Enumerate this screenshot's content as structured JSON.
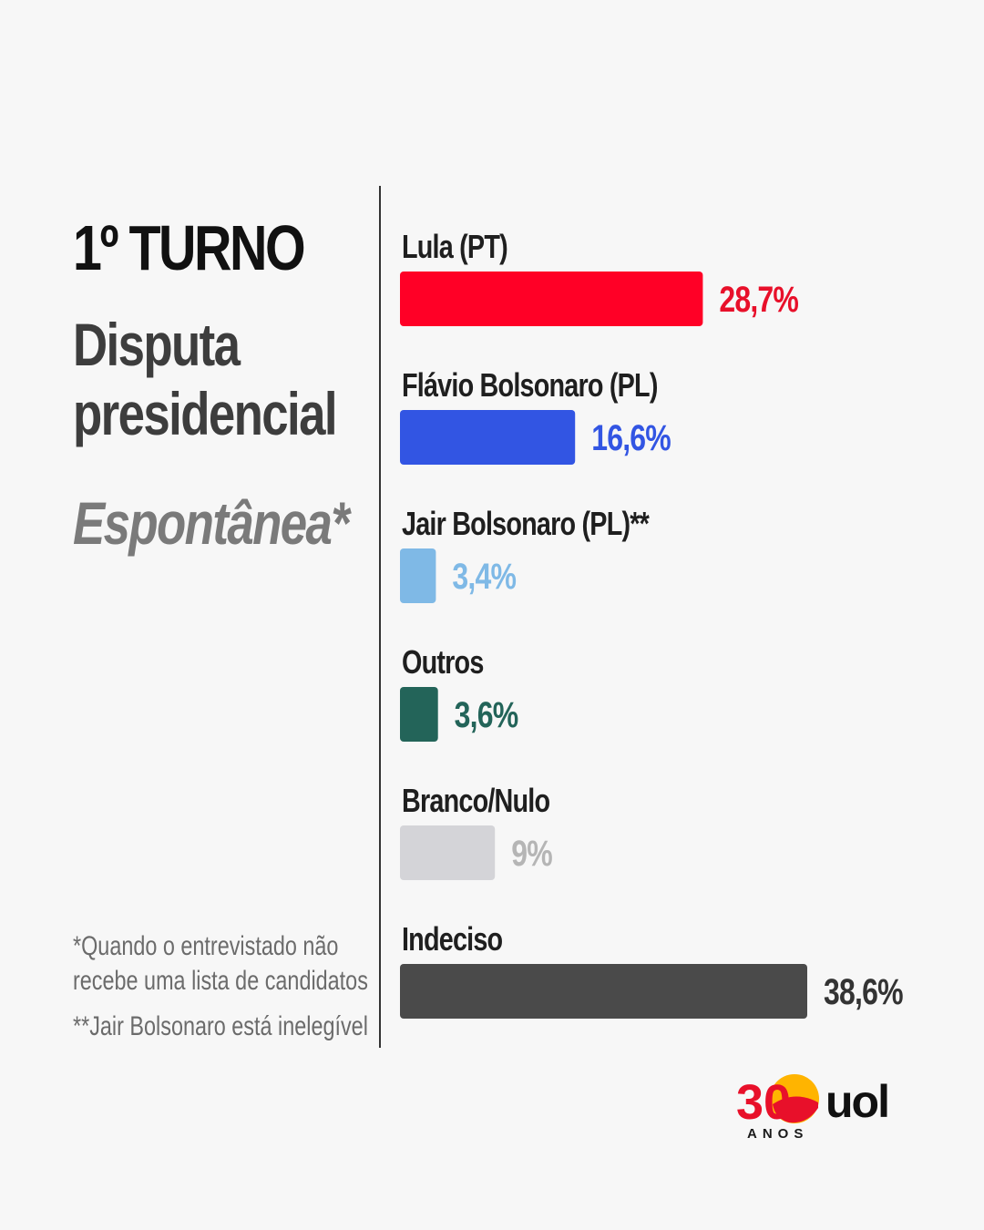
{
  "header": {
    "title": "1º TURNO",
    "subtitle_line1": "Disputa",
    "subtitle_line2": "presidencial",
    "kind": "Espontânea*"
  },
  "notes": {
    "note1_line1": "*Quando o entrevistado não",
    "note1_line2": "recebe uma lista de candidatos",
    "note2": "**Jair Bolsonaro está inelegível"
  },
  "logo": {
    "number": "30",
    "brand": "uol",
    "anos": "ANOS"
  },
  "chart_data": {
    "type": "bar",
    "orientation": "horizontal",
    "categories": [
      "Lula (PT)",
      "Flávio Bolsonaro (PL)",
      "Jair Bolsonaro (PL)**",
      "Outros",
      "Branco/Nulo",
      "Indeciso"
    ],
    "values": [
      28.7,
      16.6,
      3.4,
      3.6,
      9,
      38.6
    ],
    "value_labels": [
      "28,7%",
      "16,6%",
      "3,4%",
      "3,6%",
      "9%",
      "38,6%"
    ],
    "colors": [
      "#ff0026",
      "#3255e3",
      "#7fb9e6",
      "#236459",
      "#d4d4d8",
      "#4a4a4a"
    ],
    "label_colors": [
      "#e8102a",
      "#3255e3",
      "#7fb9e6",
      "#236459",
      "#b5b5b5",
      "#333333"
    ],
    "unit": "%",
    "xlim": [
      0,
      38.6
    ],
    "grid": false,
    "legend": "none"
  }
}
